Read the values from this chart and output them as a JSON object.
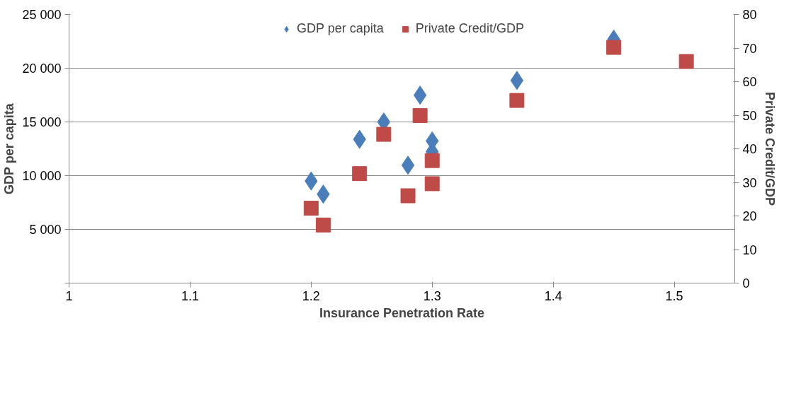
{
  "chart_data": {
    "type": "scatter",
    "xlabel": "Insurance Penetration Rate",
    "ylabel": "GDP per capita",
    "y2label": "Private Credit/GDP",
    "xlim": [
      1,
      1.55
    ],
    "xticks": [
      1,
      1.1,
      1.2,
      1.3,
      1.4,
      1.5
    ],
    "ylim": [
      0,
      25000
    ],
    "yticks": [
      {
        "value": 0,
        "label": null
      },
      {
        "value": 5000,
        "label": "5 000"
      },
      {
        "value": 10000,
        "label": "10 000"
      },
      {
        "value": 15000,
        "label": "15 000"
      },
      {
        "value": 20000,
        "label": "20 000"
      },
      {
        "value": 25000,
        "label": "25 000"
      }
    ],
    "y2lim": [
      0,
      80
    ],
    "y2ticks": [
      0,
      10,
      20,
      30,
      40,
      50,
      60,
      70,
      80
    ],
    "grid": "y",
    "legend": "top",
    "series": [
      {
        "name": "GDP per capita",
        "color": "#4a7ebb",
        "marker": "diamond",
        "x": [
          1.2,
          1.21,
          1.24,
          1.26,
          1.28,
          1.29,
          1.3,
          1.3,
          1.37,
          1.45
        ],
        "values": [
          9500,
          8280,
          13380,
          15000,
          10970,
          17490,
          13230,
          12240,
          18860,
          22700
        ]
      },
      {
        "name": "Private Credit/GDP",
        "color": "#be4b48",
        "marker": "square",
        "axis": "y2",
        "x": [
          1.2,
          1.21,
          1.24,
          1.26,
          1.28,
          1.29,
          1.3,
          1.3,
          1.37,
          1.45,
          1.51
        ],
        "values": [
          22.3,
          17.3,
          32.6,
          44.3,
          26.0,
          49.9,
          36.5,
          29.6,
          54.4,
          70.2,
          66.0
        ]
      }
    ]
  }
}
